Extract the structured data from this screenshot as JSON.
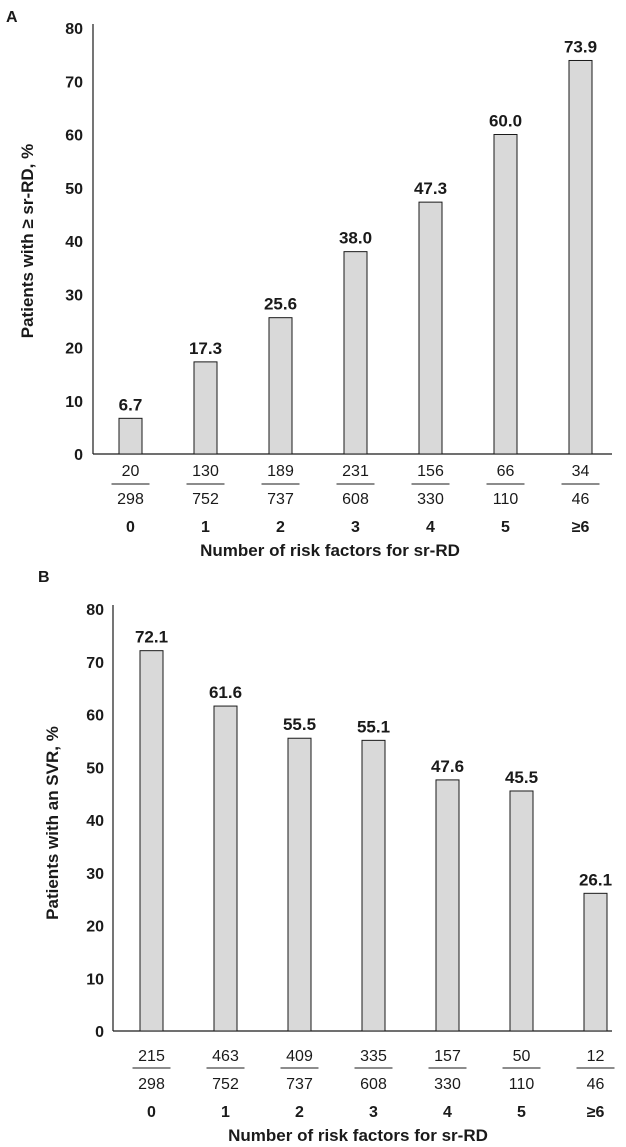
{
  "chart_data": [
    {
      "panel": "A",
      "type": "bar",
      "categories": [
        "0",
        "1",
        "2",
        "3",
        "4",
        "5",
        "≥6"
      ],
      "values": [
        6.7,
        17.3,
        25.6,
        38.0,
        47.3,
        60.0,
        73.9
      ],
      "value_labels": [
        "6.7",
        "17.3",
        "25.6",
        "38.0",
        "47.3",
        "60.0",
        "73.9"
      ],
      "numerators": [
        "20",
        "130",
        "189",
        "231",
        "156",
        "66",
        "34"
      ],
      "denominators": [
        "298",
        "752",
        "737",
        "608",
        "330",
        "110",
        "46"
      ],
      "xlabel": "Number of risk factors for sr-RD",
      "ylabel": "Patients with ≥ sr-RD, %",
      "ylim": [
        0,
        80
      ],
      "yticks": [
        "0",
        "10",
        "20",
        "30",
        "40",
        "50",
        "60",
        "70",
        "80"
      ],
      "bar_color": "#d9d9d9"
    },
    {
      "panel": "B",
      "type": "bar",
      "categories": [
        "0",
        "1",
        "2",
        "3",
        "4",
        "5",
        "≥6"
      ],
      "values": [
        72.1,
        61.6,
        55.5,
        55.1,
        47.6,
        45.5,
        26.1
      ],
      "value_labels": [
        "72.1",
        "61.6",
        "55.5",
        "55.1",
        "47.6",
        "45.5",
        "26.1"
      ],
      "numerators": [
        "215",
        "463",
        "409",
        "335",
        "157",
        "50",
        "12"
      ],
      "denominators": [
        "298",
        "752",
        "737",
        "608",
        "330",
        "110",
        "46"
      ],
      "xlabel": "Number of risk factors for sr-RD",
      "ylabel": "Patients with an SVR, %",
      "ylim": [
        0,
        80
      ],
      "yticks": [
        "0",
        "10",
        "20",
        "30",
        "40",
        "50",
        "60",
        "70",
        "80"
      ],
      "bar_color": "#d9d9d9"
    }
  ]
}
